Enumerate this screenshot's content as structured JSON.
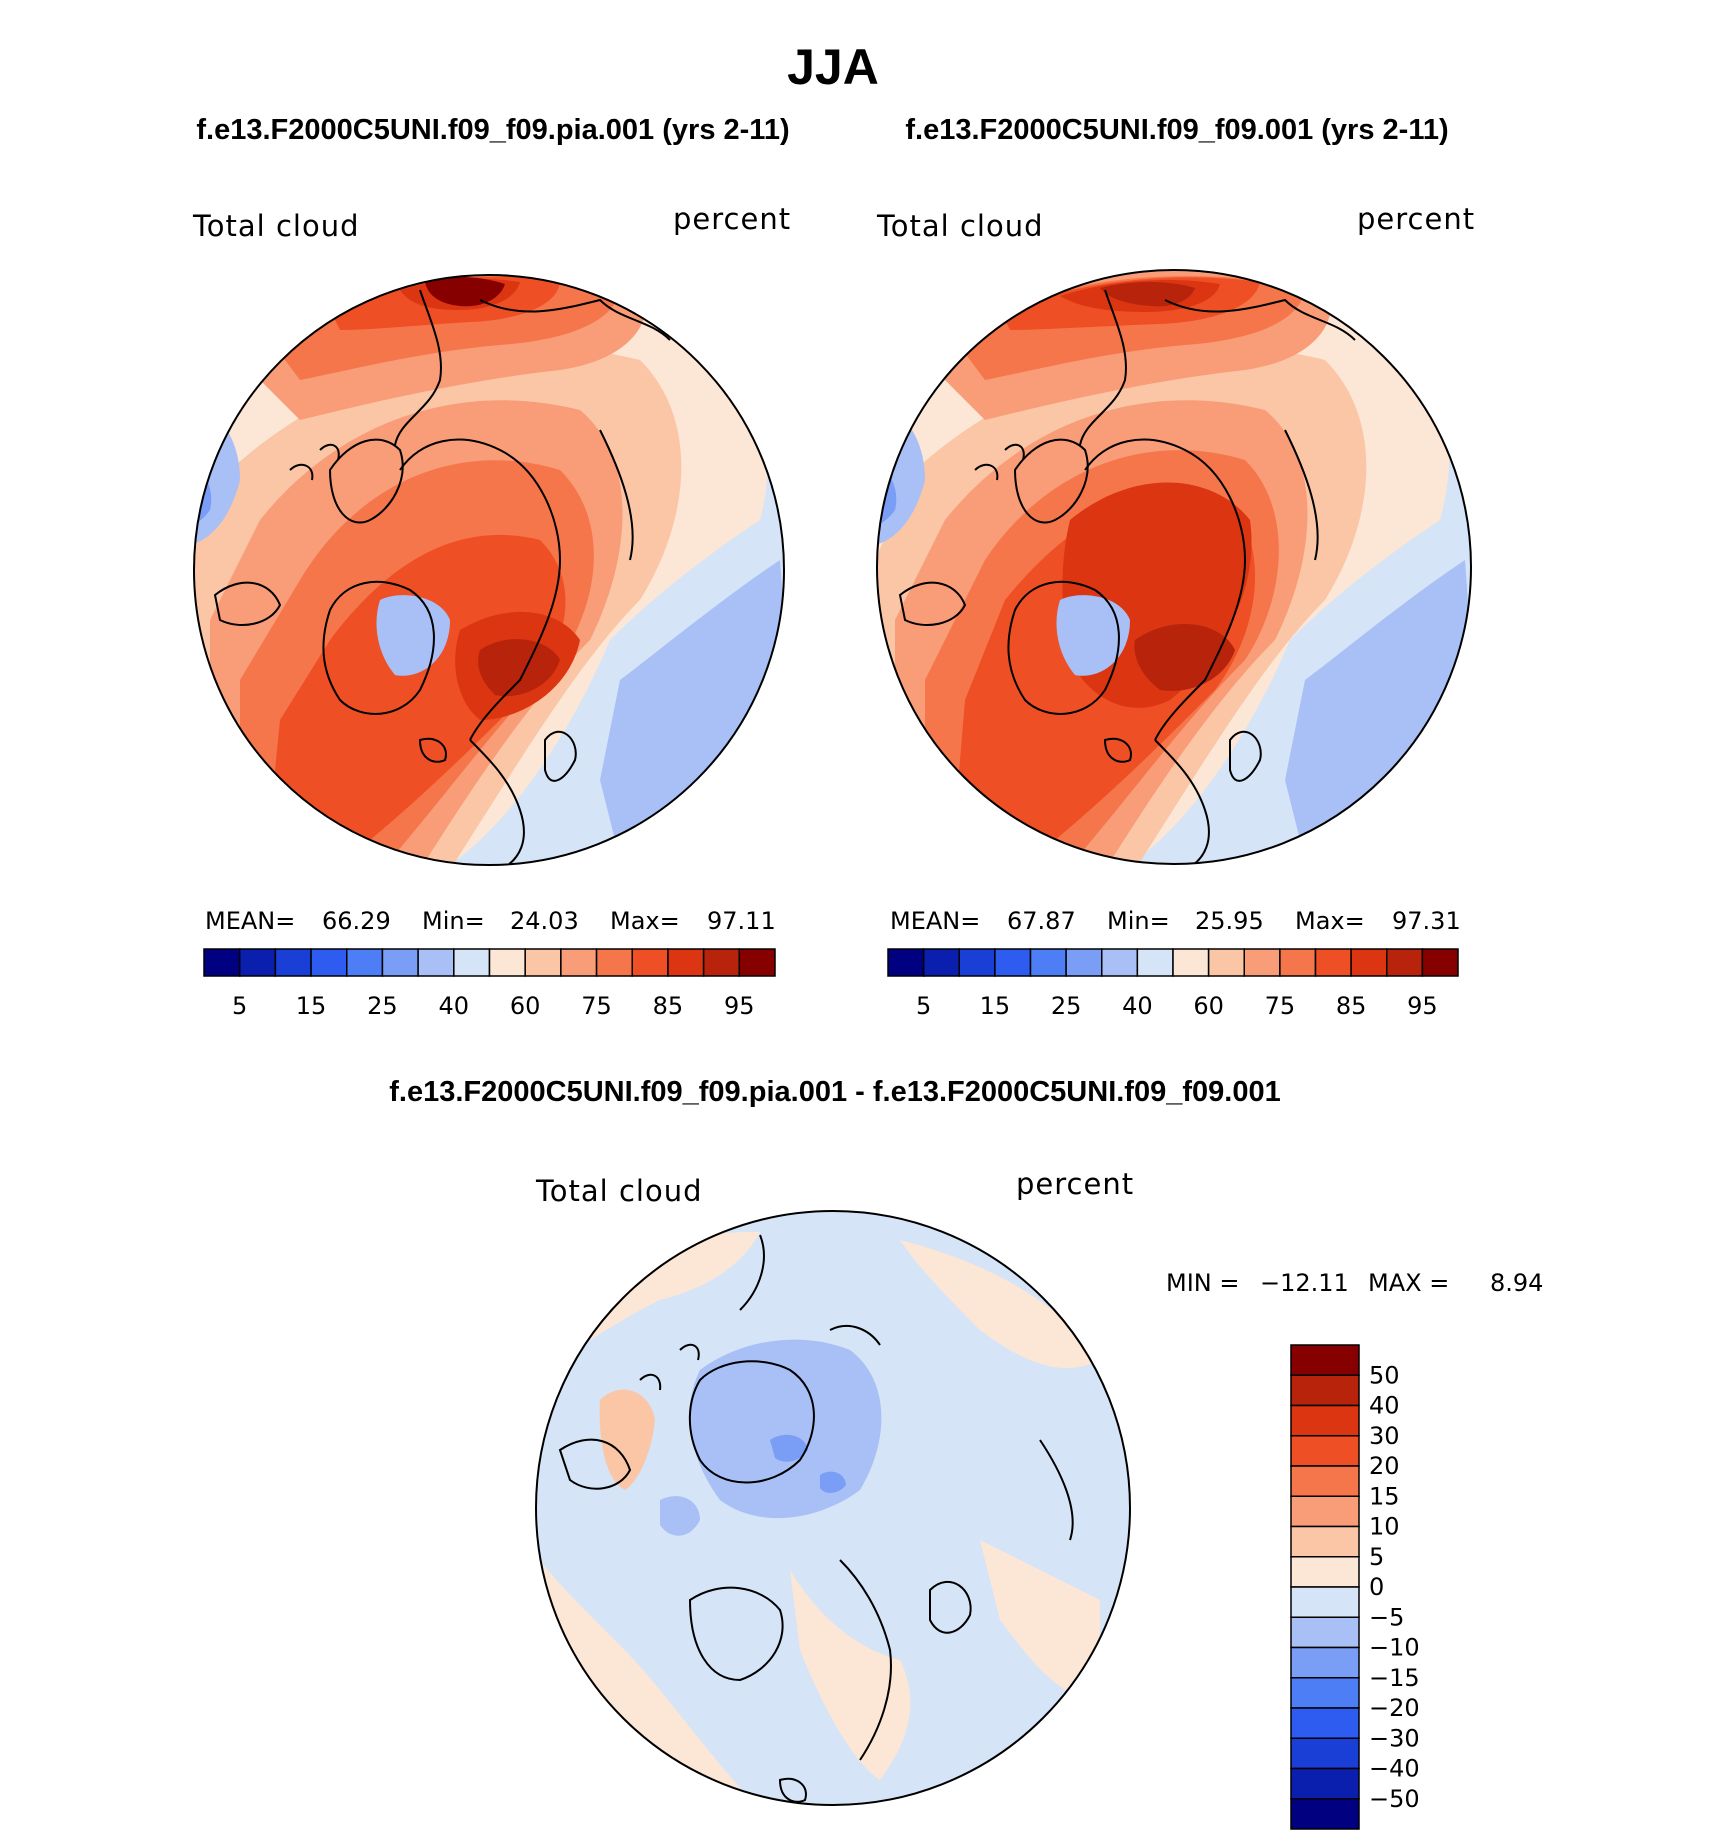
{
  "figure": {
    "title": "JJA",
    "panel_left_title": "f.e13.F2000C5UNI.f09_f09.pia.001 (yrs 2-11)",
    "panel_right_title": "f.e13.F2000C5UNI.f09_f09.001 (yrs 2-11)",
    "diff_title": "f.e13.F2000C5UNI.f09_f09.pia.001 - f.e13.F2000C5UNI.f09_f09.001"
  },
  "colors": {
    "abs_scale": [
      "#000080",
      "#0a1fad",
      "#1a3fd6",
      "#2e5cf0",
      "#4d7ef5",
      "#7a9ef5",
      "#a8c0f5",
      "#d5e4f7",
      "#fce6d6",
      "#fbc6a6",
      "#f99c78",
      "#f5764b",
      "#ef4f25",
      "#dc3512",
      "#b8230c",
      "#870000"
    ],
    "diff_scale": [
      "#000080",
      "#0a1fad",
      "#1a3fd6",
      "#2e5cf0",
      "#4d7ef5",
      "#7a9ef5",
      "#a8c0f5",
      "#d5e4f7",
      "#fce6d6",
      "#fbc6a6",
      "#f99c78",
      "#f5764b",
      "#ef4f25",
      "#dc3512",
      "#b8230c",
      "#870000"
    ]
  },
  "chart_data": [
    {
      "type": "heatmap",
      "projection": "north-polar-stereographic",
      "title": "f.e13.F2000C5UNI.f09_f09.pia.001 (yrs 2-11)",
      "left_label": "Total cloud",
      "right_label": "percent",
      "stats": {
        "mean_label": "MEAN=",
        "mean": "66.29",
        "min_label": "Min=",
        "min": "24.03",
        "max_label": "Max=",
        "max": "97.11"
      },
      "levels": [
        5,
        10,
        15,
        20,
        25,
        30,
        40,
        50,
        60,
        70,
        75,
        80,
        85,
        90,
        95
      ],
      "tick_labels": [
        "5",
        "15",
        "25",
        "40",
        "60",
        "75",
        "85",
        "95"
      ],
      "legend_placement": "bottom"
    },
    {
      "type": "heatmap",
      "projection": "north-polar-stereographic",
      "title": "f.e13.F2000C5UNI.f09_f09.001 (yrs 2-11)",
      "left_label": "Total cloud",
      "right_label": "percent",
      "stats": {
        "mean_label": "MEAN=",
        "mean": "67.87",
        "min_label": "Min=",
        "min": "25.95",
        "max_label": "Max=",
        "max": "97.31"
      },
      "levels": [
        5,
        10,
        15,
        20,
        25,
        30,
        40,
        50,
        60,
        70,
        75,
        80,
        85,
        90,
        95
      ],
      "tick_labels": [
        "5",
        "15",
        "25",
        "40",
        "60",
        "75",
        "85",
        "95"
      ],
      "legend_placement": "bottom"
    },
    {
      "type": "heatmap",
      "projection": "north-polar-stereographic",
      "title": "f.e13.F2000C5UNI.f09_f09.pia.001 - f.e13.F2000C5UNI.f09_f09.001",
      "left_label": "Total cloud",
      "right_label": "percent",
      "stats": {
        "min_label": "MIN =",
        "min": "−12.11",
        "max_label": "MAX =",
        "max": "8.94"
      },
      "levels": [
        -50,
        -40,
        -30,
        -20,
        -15,
        -10,
        -5,
        0,
        5,
        10,
        15,
        20,
        30,
        40,
        50
      ],
      "tick_labels": [
        "50",
        "40",
        "30",
        "20",
        "15",
        "10",
        "5",
        "0",
        "−5",
        "−10",
        "−15",
        "−20",
        "−30",
        "−40",
        "−50"
      ],
      "legend_placement": "right"
    }
  ]
}
